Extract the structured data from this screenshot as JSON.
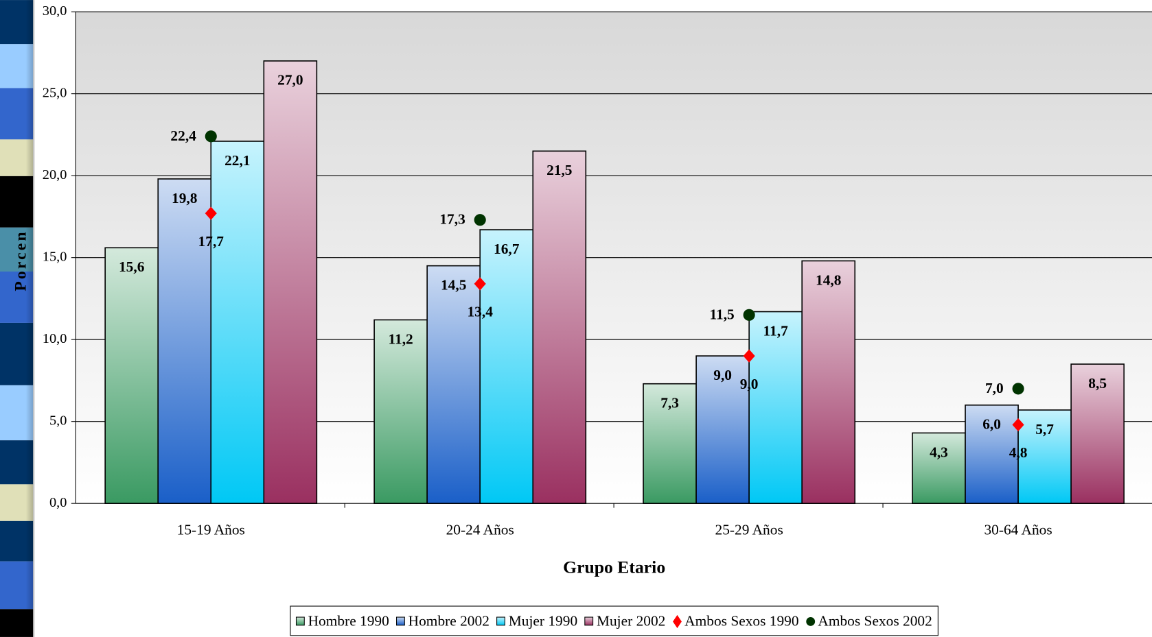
{
  "chart_data": {
    "type": "bar",
    "ylabel": "Porcen",
    "xlabel": "Grupo Etario",
    "categories": [
      "15-19 Años",
      "20-24 Años",
      "25-29 Años",
      "30-64 Años"
    ],
    "ylim": [
      0,
      30
    ],
    "yticks": [
      {
        "value": 0,
        "label": "0,0"
      },
      {
        "value": 5,
        "label": "5,0"
      },
      {
        "value": 10,
        "label": "10,0"
      },
      {
        "value": 15,
        "label": "15,0"
      },
      {
        "value": 20,
        "label": "20,0"
      },
      {
        "value": 25,
        "label": "25,0"
      },
      {
        "value": 30,
        "label": "30,0"
      }
    ],
    "grid": true,
    "legend": "bottom",
    "series": [
      {
        "name": "Hombre 1990",
        "type": "bar",
        "color": "#3a9a62",
        "values": [
          15.6,
          11.2,
          7.3,
          4.3
        ],
        "value_labels": [
          "15,6",
          "11,2",
          "7,3",
          "4,3"
        ]
      },
      {
        "name": "Hombre 2002",
        "type": "bar",
        "color": "#1a5fc8",
        "values": [
          19.8,
          14.5,
          9.0,
          6.0
        ],
        "value_labels": [
          "19,8",
          "14,5",
          "9,0",
          "6,0"
        ]
      },
      {
        "name": "Mujer 1990",
        "type": "bar",
        "color": "#00c8f5",
        "values": [
          22.1,
          16.7,
          11.7,
          5.7
        ],
        "value_labels": [
          "22,1",
          "16,7",
          "11,7",
          "5,7"
        ]
      },
      {
        "name": "Mujer 2002",
        "type": "bar",
        "color": "#9a3060",
        "values": [
          27.0,
          21.5,
          14.8,
          8.5
        ],
        "value_labels": [
          "27,0",
          "21,5",
          "14,8",
          "8,5"
        ]
      },
      {
        "name": "Ambos Sexos 1990",
        "type": "scatter",
        "marker": "diamond",
        "color": "#ff0000",
        "values": [
          17.7,
          13.4,
          9.0,
          4.8
        ],
        "value_labels": [
          "17,7",
          "13,4",
          "9,0",
          "4,8"
        ]
      },
      {
        "name": "Ambos Sexos 2002",
        "type": "scatter",
        "marker": "circle",
        "color": "#003300",
        "values": [
          22.4,
          17.3,
          11.5,
          7.0
        ],
        "value_labels": [
          "22,4",
          "17,3",
          "11,5",
          "7,0"
        ]
      }
    ]
  }
}
